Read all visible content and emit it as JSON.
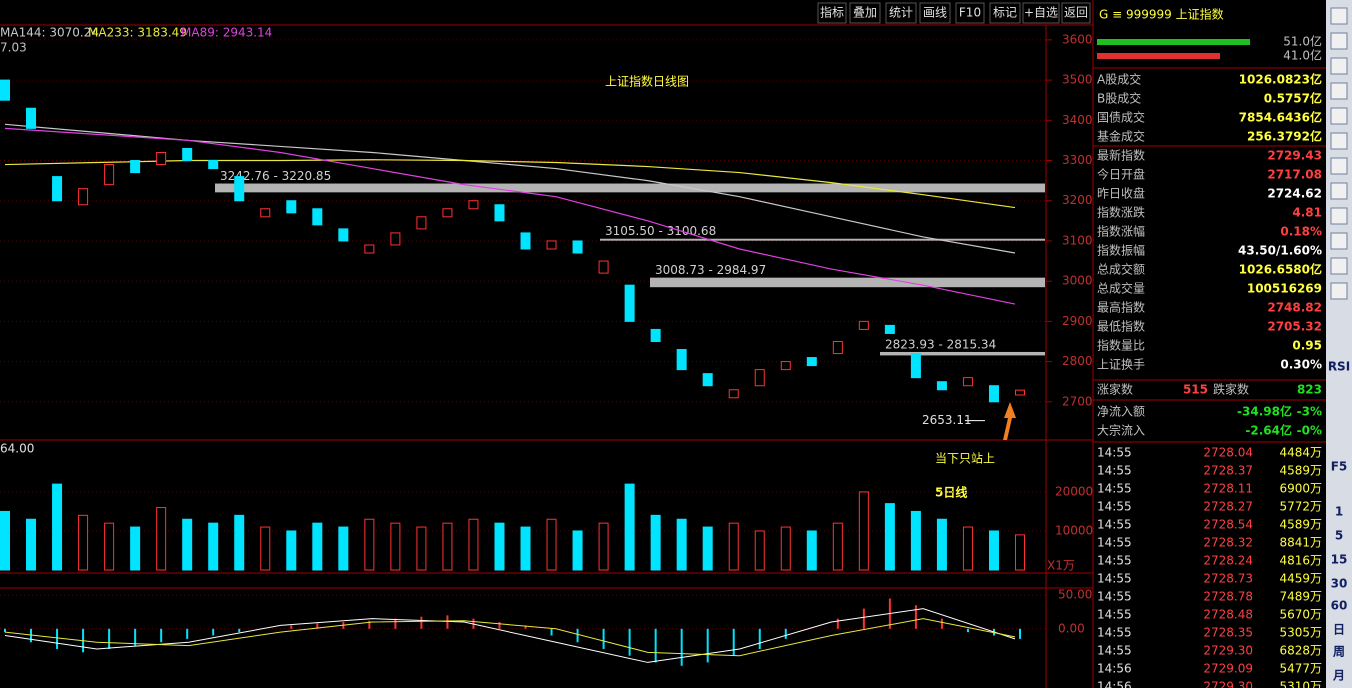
{
  "toolbar": [
    "指标",
    "叠加",
    "统计",
    "画线",
    "F10",
    "标记",
    "+自选",
    "返回"
  ],
  "chart_data": {
    "type": "candlestick",
    "title": "上证指数日线图",
    "annotation_lines": [
      "当下只站上",
      "5日线"
    ],
    "price_header": "7.03",
    "ma_labels": [
      "MA144: 3070.24",
      "MA233: 3183.49",
      "MA89: 2943.14"
    ],
    "ylim": [
      2605,
      3637
    ],
    "yticks": [
      2700,
      2800,
      2900,
      3000,
      3100,
      3200,
      3300,
      3400,
      3500,
      3600
    ],
    "up_color": "#ff3232",
    "down_color": "#00e4ff",
    "open": [
      3500,
      3430,
      3260,
      3190,
      3240,
      3300,
      3290,
      3330,
      3300,
      3260,
      3160,
      3200,
      3180,
      3130,
      3070,
      3090,
      3130,
      3160,
      3180,
      3190,
      3120,
      3080,
      3100,
      3020,
      2990,
      2880,
      2830,
      2770,
      2710,
      2740,
      2780,
      2810,
      2820,
      2880,
      2890,
      2820,
      2750,
      2740,
      2740,
      2717
    ],
    "close": [
      3450,
      3380,
      3200,
      3230,
      3290,
      3270,
      3320,
      3300,
      3280,
      3200,
      3180,
      3170,
      3140,
      3100,
      3090,
      3120,
      3160,
      3180,
      3200,
      3150,
      3080,
      3100,
      3070,
      3050,
      2900,
      2850,
      2780,
      2740,
      2730,
      2780,
      2800,
      2790,
      2850,
      2900,
      2870,
      2760,
      2730,
      2760,
      2700,
      2729
    ],
    "series": [
      {
        "name": "MA144",
        "color": "#c8c8c8",
        "values": [
          3390,
          3370,
          3350,
          3335,
          3320,
          3300,
          3280,
          3250,
          3210,
          3160,
          3110,
          3070
        ]
      },
      {
        "name": "MA233",
        "color": "#e8e83c",
        "values": [
          3290,
          3295,
          3300,
          3300,
          3302,
          3300,
          3295,
          3285,
          3270,
          3245,
          3215,
          3183
        ]
      },
      {
        "name": "MA89",
        "color": "#e040e0",
        "values": [
          3380,
          3365,
          3350,
          3320,
          3280,
          3240,
          3210,
          3150,
          3080,
          3030,
          2990,
          2943
        ]
      }
    ],
    "zones": [
      {
        "label": "3242.76 - 3220.85",
        "high": 3242.76,
        "low": 3220.85
      },
      {
        "label": "3105.50 - 3100.68",
        "high": 3105.5,
        "low": 3100.68
      },
      {
        "label": "3008.73 - 2984.97",
        "high": 3008.73,
        "low": 2984.97
      },
      {
        "label": "2823.93 - 2815.34",
        "high": 2823.93,
        "low": 2815.34
      }
    ],
    "low_marker": {
      "label": "2653.11",
      "value": 2653.11
    },
    "volume": {
      "header": "64.00",
      "unit": "X1万",
      "ylim": [
        0,
        33300
      ],
      "yticks": [
        10000,
        20000
      ],
      "values": [
        15000,
        13000,
        22000,
        14000,
        12000,
        11000,
        16000,
        13000,
        12000,
        14000,
        11000,
        10000,
        12000,
        11000,
        13000,
        12000,
        11000,
        12000,
        13000,
        12000,
        11000,
        13000,
        10000,
        12000,
        22000,
        14000,
        13000,
        11000,
        12000,
        10000,
        11000,
        10000,
        12000,
        20000,
        17000,
        15000,
        13000,
        11000,
        10000,
        9000
      ]
    },
    "macd": {
      "ylim": [
        -88,
        60.6
      ],
      "yticks": [
        {
          "value": 0,
          "label": "0.00"
        },
        {
          "value": 50,
          "label": "50.00"
        }
      ],
      "values": [
        -5,
        -20,
        -30,
        -35,
        -30,
        -25,
        -20,
        -15,
        -10,
        -5,
        0,
        5,
        8,
        10,
        12,
        15,
        18,
        20,
        15,
        10,
        5,
        -10,
        -20,
        -30,
        -40,
        -50,
        -55,
        -50,
        -40,
        -30,
        -15,
        0,
        15,
        30,
        45,
        35,
        15,
        -5,
        -10,
        -15
      ],
      "dif": [
        -10,
        -30,
        -20,
        5,
        15,
        10,
        -20,
        -50,
        -30,
        10,
        30,
        -15
      ],
      "dea": [
        -5,
        -20,
        -25,
        -5,
        10,
        12,
        0,
        -35,
        -40,
        -10,
        15,
        -12
      ]
    }
  },
  "quote": {
    "header": "G ≡ 999999 上证指数",
    "bars": [
      {
        "value": 51.0,
        "label": "51.0亿"
      },
      {
        "value": 41.0,
        "label": "41.0亿"
      }
    ],
    "rows": [
      {
        "label": "A股成交",
        "value": "1026.0823亿",
        "color": "#ffff40"
      },
      {
        "label": "B股成交",
        "value": "0.5757亿",
        "color": "#ffff40"
      },
      {
        "label": "国债成交",
        "value": "7854.6436亿",
        "color": "#ffff40"
      },
      {
        "label": "基金成交",
        "value": "256.3792亿",
        "color": "#ffff40"
      },
      {
        "label": "最新指数",
        "value": "2729.43",
        "color": "#ff4040"
      },
      {
        "label": "今日开盘",
        "value": "2717.08",
        "color": "#ff4040"
      },
      {
        "label": "昨日收盘",
        "value": "2724.62",
        "color": "#ffffff"
      },
      {
        "label": "指数涨跌",
        "value": "4.81",
        "color": "#ff4040"
      },
      {
        "label": "指数涨幅",
        "value": "0.18%",
        "color": "#ff4040"
      },
      {
        "label": "指数振幅",
        "value": "43.50/1.60%",
        "color": "#ffffff"
      },
      {
        "label": "总成交额",
        "value": "1026.6580亿",
        "color": "#ffff40"
      },
      {
        "label": "总成交量",
        "value": "100516269",
        "color": "#ffff40"
      },
      {
        "label": "最高指数",
        "value": "2748.82",
        "color": "#ff4040"
      },
      {
        "label": "最低指数",
        "value": "2705.32",
        "color": "#ff4040"
      },
      {
        "label": "指数量比",
        "value": "0.95",
        "color": "#ffff40"
      },
      {
        "label": "上证换手",
        "value": "0.30%",
        "color": "#ffffff"
      }
    ],
    "breadth": {
      "up_label": "涨家数",
      "up": "515",
      "down_label": "跌家数",
      "down": "823"
    },
    "flows": [
      {
        "label": "净流入额",
        "value": "-34.98亿",
        "pct": "-3%"
      },
      {
        "label": "大宗流入",
        "value": "-2.64亿",
        "pct": "-0%"
      }
    ],
    "ticks": [
      [
        "14:55",
        "2728.04",
        "4484万"
      ],
      [
        "14:55",
        "2728.37",
        "4589万"
      ],
      [
        "14:55",
        "2728.11",
        "6900万"
      ],
      [
        "14:55",
        "2728.27",
        "5772万"
      ],
      [
        "14:55",
        "2728.54",
        "4589万"
      ],
      [
        "14:55",
        "2728.32",
        "8841万"
      ],
      [
        "14:55",
        "2728.24",
        "4816万"
      ],
      [
        "14:55",
        "2728.73",
        "4459万"
      ],
      [
        "14:55",
        "2728.78",
        "7489万"
      ],
      [
        "14:55",
        "2728.48",
        "5670万"
      ],
      [
        "14:55",
        "2728.35",
        "5305万"
      ],
      [
        "14:55",
        "2729.30",
        "6828万"
      ],
      [
        "14:56",
        "2729.09",
        "5477万"
      ],
      [
        "14:56",
        "2729.30",
        "5310万"
      ]
    ]
  },
  "side_buttons": [
    "RSI",
    "F5",
    "1",
    "5",
    "15",
    "30",
    "60",
    "日",
    "周",
    "月"
  ]
}
